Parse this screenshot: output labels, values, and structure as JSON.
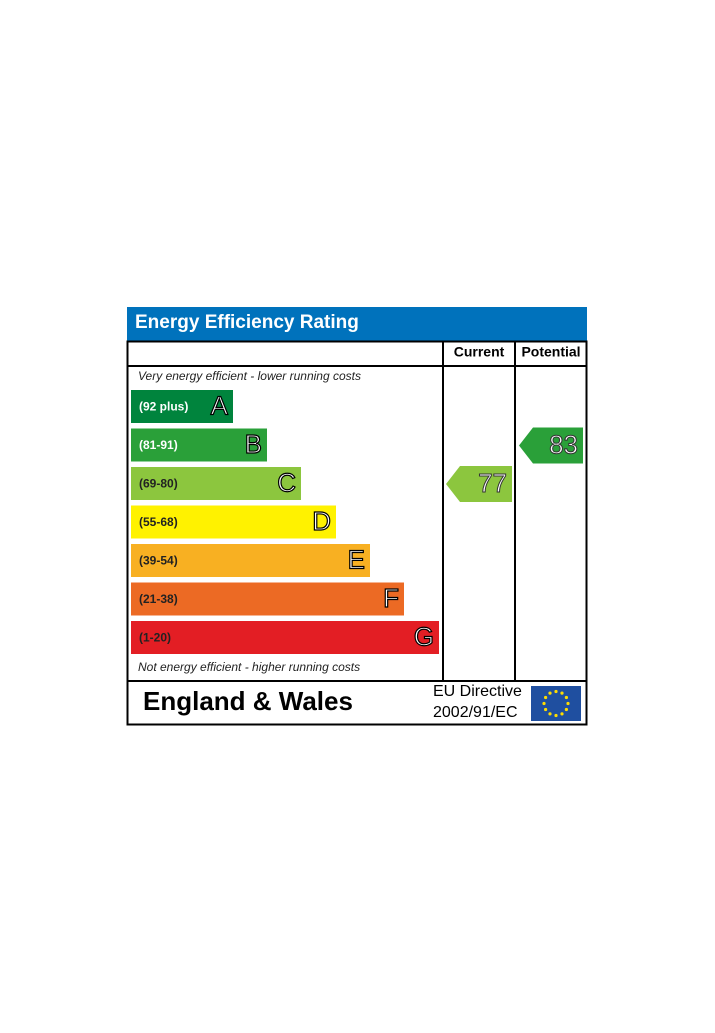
{
  "title": "Energy Efficiency Rating",
  "columns": [
    "Current",
    "Potential"
  ],
  "top_note": "Very energy efficient - lower running costs",
  "bottom_note": "Not energy efficient - higher running costs",
  "bands": [
    {
      "range": "(92 plus)",
      "letter": "A",
      "color": "#00843d"
    },
    {
      "range": "(81-91)",
      "letter": "B",
      "color": "#2aa039"
    },
    {
      "range": "(69-80)",
      "letter": "C",
      "color": "#8cc63e"
    },
    {
      "range": "(55-68)",
      "letter": "D",
      "color": "#fff200"
    },
    {
      "range": "(39-54)",
      "letter": "E",
      "color": "#f8b022"
    },
    {
      "range": "(21-38)",
      "letter": "F",
      "color": "#ec6a24"
    },
    {
      "range": "(1-20)",
      "letter": "G",
      "color": "#e31e24"
    }
  ],
  "current": 77,
  "potential": 83,
  "footer": {
    "region": "England & Wales",
    "directive_line1": "EU Directive",
    "directive_line2": "2002/91/EC"
  }
}
